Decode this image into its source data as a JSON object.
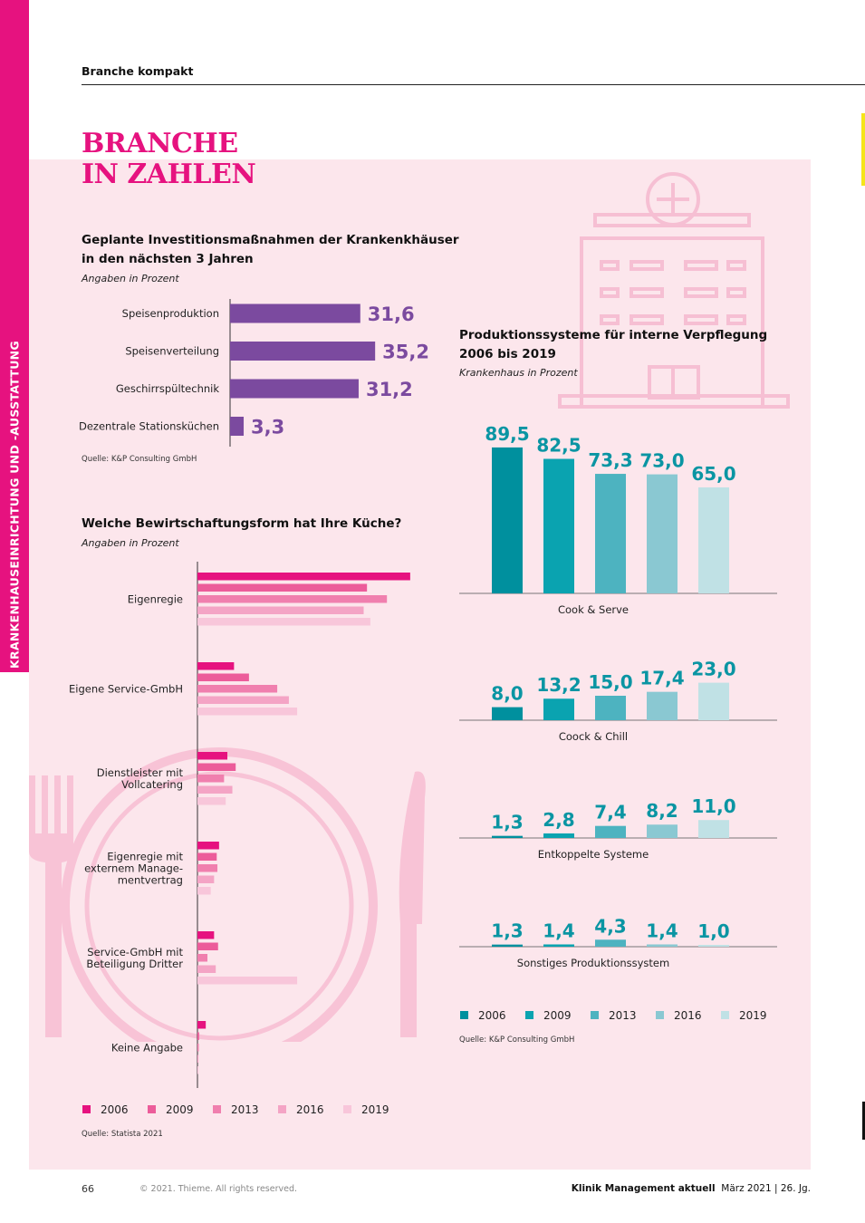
{
  "header": {
    "section": "Branche kompakt",
    "sidebar": "KRANKENHAUSEINRICHTUNG UND -AUSSTATTUNG",
    "title_line1": "BRANCHE",
    "title_line2": "IN ZAHLEN"
  },
  "colors": {
    "magenta": "#e6127f",
    "purple": "#7b4a9f",
    "teal": "#0a95a3",
    "panel": "#fce6ec"
  },
  "chart_data": [
    {
      "type": "bar",
      "orientation": "horizontal",
      "title": "Geplante Investitionsmaßnahmen der Krankenkhäuser",
      "title2": "in den nächsten 3 Jahren",
      "subtitle": "Angaben in Prozent",
      "source": "Quelle: K&P Consulting GmbH",
      "categories": [
        "Speisenproduktion",
        "Speisenverteilung",
        "Geschirrspültechnik",
        "Dezentrale Stationsküchen"
      ],
      "values": [
        31.6,
        35.2,
        31.2,
        3.3
      ],
      "labels": [
        "31,6",
        "35,2",
        "31,2",
        "3,3"
      ],
      "color": "#7b4a9f"
    },
    {
      "type": "bar",
      "orientation": "horizontal",
      "title": "Welche Bewirtschaftungsform hat Ihre Küche?",
      "subtitle": "Angaben in Prozent",
      "source": "Quelle: Statista 2021",
      "categories": [
        "Eigenregie",
        "Eigene Service-GmbH",
        "Dienstleister mit|Vollcatering",
        "Eigenregie mit|externem Manage-|mentvertrag",
        "Service-GmbH mit|Beteiligung Dritter",
        "Keine Angabe"
      ],
      "series": [
        {
          "name": "2006",
          "color": "#e6127f",
          "values": [
            64,
            11,
            9,
            6.5,
            5,
            2.5
          ]
        },
        {
          "name": "2009",
          "color": "#ec5c9a",
          "values": [
            51,
            15.5,
            11.5,
            5.8,
            6.2,
            0.5
          ]
        },
        {
          "name": "2013",
          "color": "#f07fae",
          "values": [
            57,
            24,
            8,
            6,
            3,
            0.4
          ]
        },
        {
          "name": "2016",
          "color": "#f4a4c5",
          "values": [
            50,
            27.5,
            10.5,
            5,
            5.5,
            0.3
          ]
        },
        {
          "name": "2019",
          "color": "#f8c6da",
          "values": [
            52,
            30,
            8.5,
            4,
            30,
            0.3
          ]
        }
      ],
      "xlim": [
        0,
        68
      ],
      "legend": "bottom"
    },
    {
      "type": "bar",
      "title": "Produktionssysteme für interne Verpflegung",
      "title2": "2006 bis 2019",
      "subtitle": "Krankenhaus in Prozent",
      "source": "Quelle:  K&P Consulting GmbH",
      "x": [
        "2006",
        "2009",
        "2013",
        "2016",
        "2019"
      ],
      "colors": [
        "#00909e",
        "#0aa3b0",
        "#4db3c0",
        "#8ac8d2",
        "#c0e1e5"
      ],
      "groups": [
        {
          "name": "Cook & Serve",
          "values": [
            89.5,
            82.5,
            73.3,
            73.0,
            65.0
          ],
          "labels": [
            "89,5",
            "82,5",
            "73,3",
            "73,0",
            "65,0"
          ]
        },
        {
          "name": "Coock & Chill",
          "values": [
            8.0,
            13.2,
            15.0,
            17.4,
            23.0
          ],
          "labels": [
            "8,0",
            "13,2",
            "15,0",
            "17,4",
            "23,0"
          ]
        },
        {
          "name": "Entkoppelte Systeme",
          "values": [
            1.3,
            2.8,
            7.4,
            8.2,
            11.0
          ],
          "labels": [
            "1,3",
            "2,8",
            "7,4",
            "8,2",
            "11,0"
          ]
        },
        {
          "name": "Sonstiges Produktionssystem",
          "values": [
            1.3,
            1.4,
            4.3,
            1.4,
            1.0
          ],
          "labels": [
            "1,3",
            "1,4",
            "4,3",
            "1,4",
            "1,0"
          ]
        }
      ],
      "legend": "bottom"
    }
  ],
  "footer": {
    "page": "66",
    "copyright": "© 2021. Thieme. All rights reserved.",
    "journal": "Klinik Management aktuell",
    "issue": "März 2021  |  26. Jg."
  }
}
